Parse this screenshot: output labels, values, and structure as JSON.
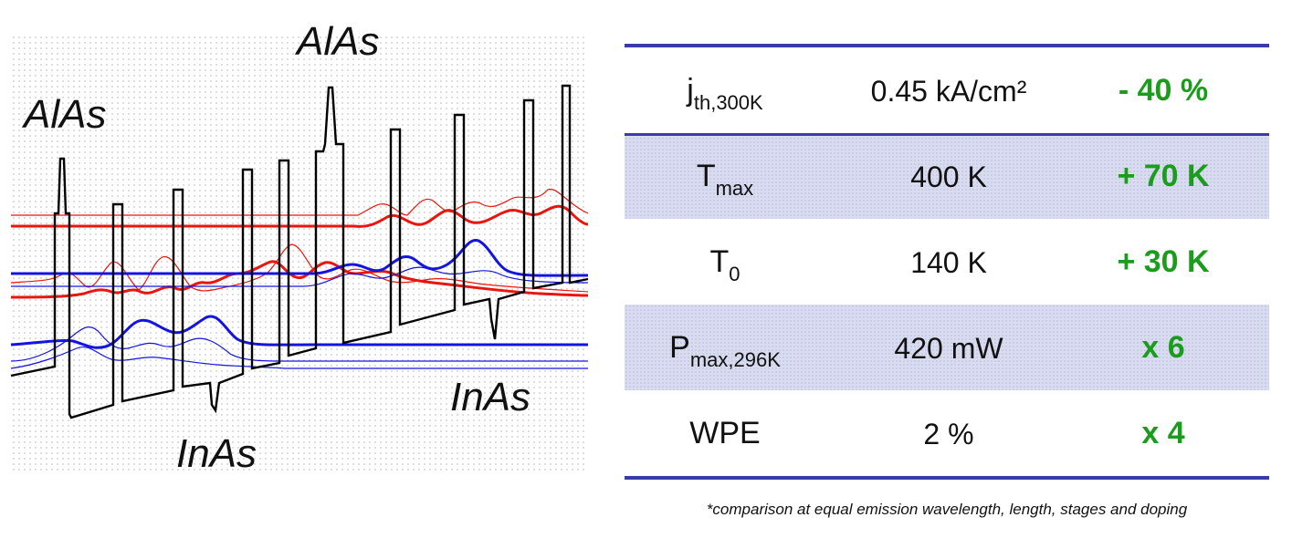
{
  "diagram": {
    "labels": {
      "alas_top": "AlAs",
      "alas_left": "AlAs",
      "inas_right": "InAs",
      "inas_bottom": "InAs"
    },
    "colors": {
      "band_edge": "#000000",
      "upper_states": "#e8160e",
      "lower_states": "#1414e0"
    }
  },
  "table": {
    "rows": [
      {
        "param_main": "j",
        "param_sub": "th,300K",
        "value": "0.45 kA/cm²",
        "change": "- 40 %"
      },
      {
        "param_main": "T",
        "param_sub": "max",
        "value": "400 K",
        "change": "+ 70 K"
      },
      {
        "param_main": "T",
        "param_sub": "0",
        "value": "140 K",
        "change": "+ 30 K"
      },
      {
        "param_main": "P",
        "param_sub": "max,296K",
        "value": "420 mW",
        "change": "x 6"
      },
      {
        "param_main": "WPE",
        "param_sub": "",
        "value": "2 %",
        "change": "x 4"
      }
    ],
    "colors": {
      "rule": "#3a3aa8",
      "shade": "#d9dcef",
      "change_text": "#1c9c1c"
    }
  },
  "footnote": "*comparison at equal emission wavelength, length, stages and doping"
}
